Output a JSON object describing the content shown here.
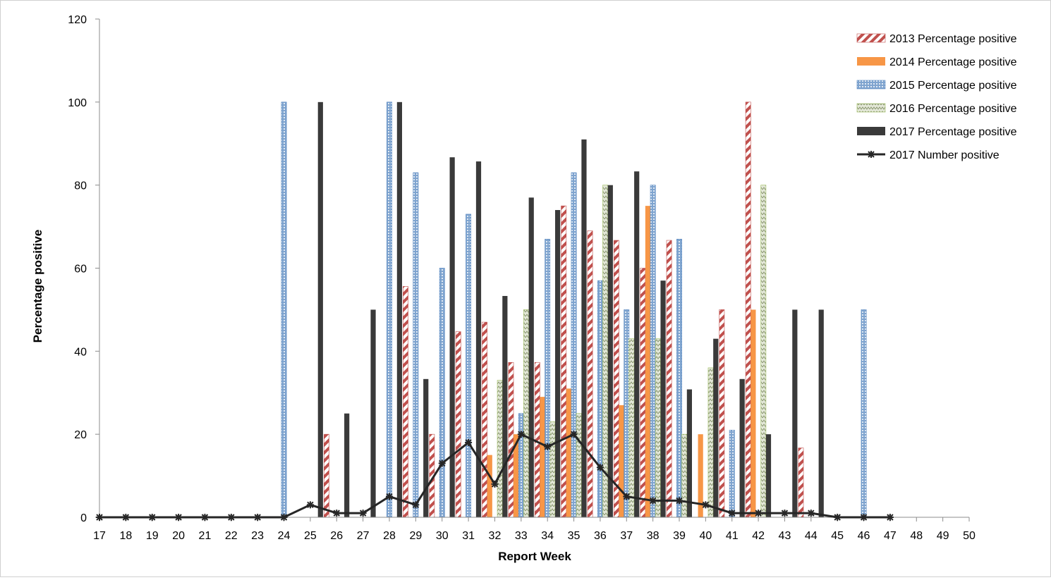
{
  "chart_data": {
    "type": "bar",
    "title": "",
    "xlabel": "Report Week",
    "ylabel": "Percentage positive",
    "ylim": [
      0,
      120
    ],
    "yticks": [
      0,
      20,
      40,
      60,
      80,
      100,
      120
    ],
    "grid": false,
    "legend_position": "top-right",
    "x": [
      17,
      18,
      19,
      20,
      21,
      22,
      23,
      24,
      25,
      26,
      27,
      28,
      29,
      30,
      31,
      32,
      33,
      34,
      35,
      36,
      37,
      38,
      39,
      40,
      41,
      42,
      43,
      44,
      45,
      46,
      47,
      48,
      49,
      50
    ],
    "series": [
      {
        "name": "2013 Percentage positive",
        "kind": "bar",
        "pattern": "diagonal-stripes",
        "color": "#c0504d",
        "values": [
          null,
          null,
          null,
          null,
          null,
          null,
          null,
          null,
          null,
          20,
          null,
          null,
          55.6,
          20,
          44.7,
          47,
          37.3,
          37.3,
          75,
          69,
          66.7,
          60,
          66.7,
          null,
          50,
          100,
          null,
          16.7,
          null,
          null,
          null,
          null,
          null,
          null
        ]
      },
      {
        "name": "2014 Percentage positive",
        "kind": "bar",
        "pattern": "solid",
        "color": "#f79646",
        "values": [
          null,
          null,
          null,
          null,
          null,
          null,
          null,
          null,
          null,
          null,
          null,
          null,
          null,
          null,
          null,
          15,
          20,
          29,
          31,
          null,
          27,
          75,
          null,
          20,
          null,
          50,
          null,
          null,
          null,
          null,
          null,
          null,
          null,
          null
        ]
      },
      {
        "name": "2015 Percentage positive",
        "kind": "bar",
        "pattern": "dots",
        "color": "#4f81bd",
        "values": [
          null,
          null,
          null,
          null,
          null,
          null,
          null,
          100,
          null,
          null,
          null,
          100,
          83,
          60,
          73,
          null,
          25,
          67,
          83,
          57,
          50,
          80,
          67,
          null,
          21,
          null,
          null,
          null,
          null,
          50,
          null,
          null,
          null,
          null
        ]
      },
      {
        "name": "2016 Percentage positive",
        "kind": "bar",
        "pattern": "zigzag",
        "color": "#9bbb59",
        "values": [
          null,
          null,
          null,
          null,
          null,
          null,
          null,
          null,
          null,
          null,
          null,
          null,
          null,
          null,
          null,
          33,
          50,
          23,
          25,
          80,
          43,
          43,
          20,
          36,
          null,
          80,
          null,
          null,
          null,
          null,
          null,
          null,
          null,
          null
        ]
      },
      {
        "name": "2017 Percentage positive",
        "kind": "bar",
        "pattern": "solid",
        "color": "#3a3a3a",
        "values": [
          null,
          null,
          null,
          null,
          null,
          null,
          null,
          null,
          100,
          25,
          50,
          100,
          33.3,
          86.7,
          85.7,
          53.3,
          77,
          74,
          91,
          80,
          83.3,
          57,
          30.8,
          43,
          33.3,
          20,
          50,
          50,
          null,
          null,
          null,
          null,
          null,
          null
        ]
      },
      {
        "name": "2017 Number positive",
        "kind": "line",
        "marker": "star",
        "color": "#262626",
        "values": [
          0,
          0,
          0,
          0,
          0,
          0,
          0,
          0,
          3,
          1,
          1,
          5,
          3,
          13,
          18,
          8,
          20,
          17,
          20,
          12,
          5,
          4,
          4,
          3,
          1,
          1,
          1,
          1,
          0,
          0,
          0,
          null,
          null,
          null
        ]
      }
    ]
  }
}
